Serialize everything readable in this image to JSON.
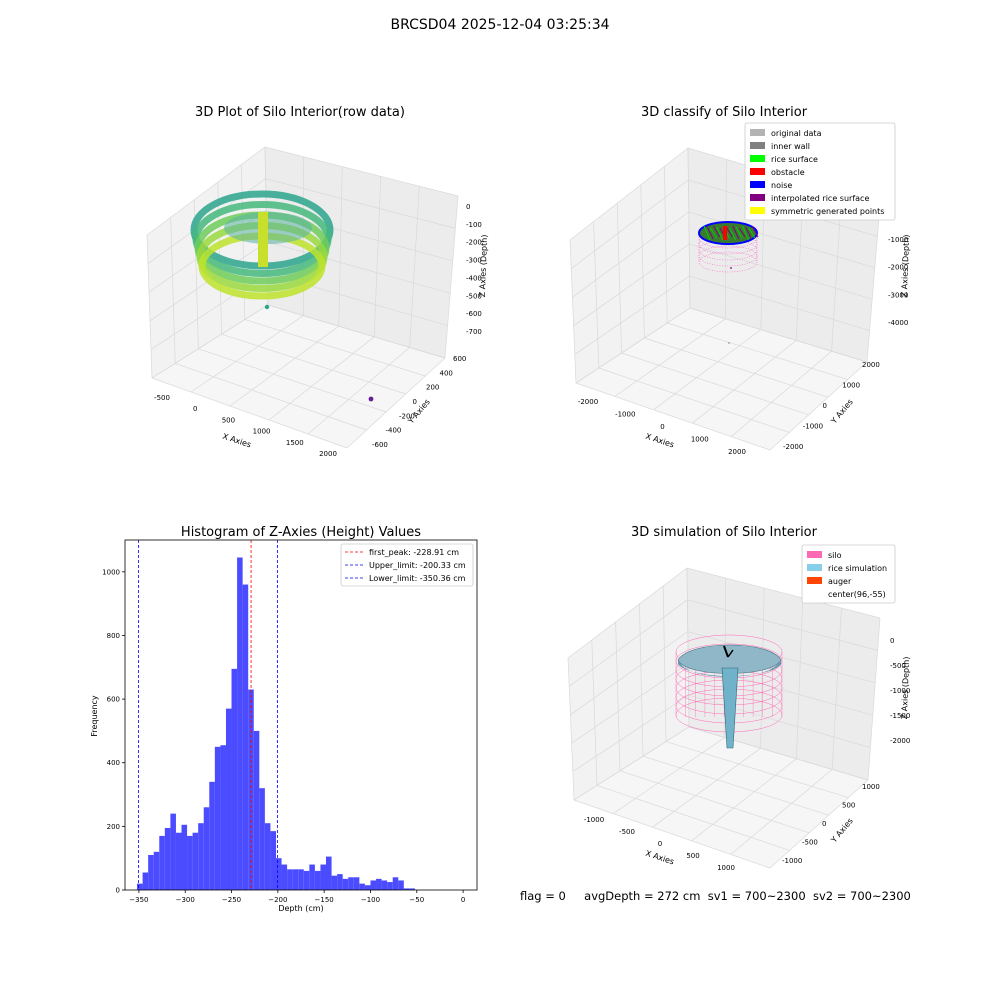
{
  "figure": {
    "suptitle": "BRCSD04 2025-12-04 03:25:34",
    "status_line": {
      "flag": "flag = 0",
      "avg_depth": "avgDepth = 272 cm",
      "sv1": "sv1 = 700~2300",
      "sv2": "sv2 = 700~2300"
    }
  },
  "panels": {
    "raw": {
      "title": "3D Plot of Silo Interior(row data)",
      "xlabel": "X Axies",
      "ylabel": "Y Axies",
      "zlabel": "Z Axies (Depth)",
      "x_ticks": [
        "-500",
        "0",
        "500",
        "1000",
        "1500",
        "2000"
      ],
      "y_ticks": [
        "-600",
        "-400",
        "-200",
        "0",
        "200",
        "400",
        "600"
      ],
      "z_ticks": [
        "0",
        "-100",
        "-200",
        "-300",
        "-400",
        "-500",
        "-600",
        "-700"
      ]
    },
    "classify": {
      "title": "3D classify of Silo Interior",
      "xlabel": "X Axies",
      "ylabel": "Y Axies",
      "zlabel": "Z Axies (Depth)",
      "x_ticks": [
        "-2000",
        "-1000",
        "0",
        "1000",
        "2000"
      ],
      "y_ticks": [
        "-2000",
        "-1000",
        "0",
        "1000",
        "2000"
      ],
      "z_ticks": [
        "0",
        "-1000",
        "-2000",
        "-3000",
        "-4000"
      ],
      "legend": [
        {
          "label": "original data",
          "color": "#b3b3b3"
        },
        {
          "label": "inner wall",
          "color": "#808080"
        },
        {
          "label": "rice surface",
          "color": "#00ff00"
        },
        {
          "label": "obstacle",
          "color": "#ff0000"
        },
        {
          "label": "noise",
          "color": "#0000ff"
        },
        {
          "label": "interpolated rice surface",
          "color": "#800080"
        },
        {
          "label": "symmetric generated points",
          "color": "#ffff00"
        }
      ]
    },
    "simulation": {
      "title": "3D simulation of Silo Interior",
      "xlabel": "X Axies",
      "ylabel": "Y Axies",
      "zlabel": "Z Axies (Depth)",
      "x_ticks": [
        "-1000",
        "-500",
        "0",
        "500",
        "1000"
      ],
      "y_ticks": [
        "-1000",
        "-500",
        "0",
        "500",
        "1000"
      ],
      "z_ticks": [
        "0",
        "-500",
        "-1000",
        "-1500",
        "-2000"
      ],
      "legend": [
        {
          "label": "silo",
          "color": "#ff69b4"
        },
        {
          "label": "rice simulation",
          "color": "#87ceeb"
        },
        {
          "label": "auger",
          "color": "#ff4500"
        },
        {
          "label": "center(96,-55)",
          "color": "#ffffff"
        }
      ]
    }
  },
  "chart_data": [
    {
      "type": "scatter",
      "title": "3D Plot of Silo Interior(row data)",
      "xlabel": "X Axies",
      "ylabel": "Y Axies",
      "zlabel": "Z Axies (Depth)",
      "xlim": [
        -700,
        2000
      ],
      "ylim": [
        -700,
        700
      ],
      "zlim": [
        -720,
        20
      ],
      "grid": true
    },
    {
      "type": "scatter",
      "title": "3D classify of Silo Interior",
      "xlabel": "X Axies",
      "ylabel": "Y Axies",
      "zlabel": "Z Axies (Depth)",
      "xlim": [
        -2400,
        2400
      ],
      "ylim": [
        -2400,
        2400
      ],
      "zlim": [
        -4600,
        200
      ],
      "legend_position": "top-right",
      "series": [
        {
          "name": "original data",
          "color": "#b3b3b3"
        },
        {
          "name": "inner wall",
          "color": "#808080"
        },
        {
          "name": "rice surface",
          "color": "#00ff00"
        },
        {
          "name": "obstacle",
          "color": "#ff0000"
        },
        {
          "name": "noise",
          "color": "#0000ff"
        },
        {
          "name": "interpolated rice surface",
          "color": "#800080"
        },
        {
          "name": "symmetric generated points",
          "color": "#ffff00"
        }
      ]
    },
    {
      "type": "bar",
      "title": "Histogram of Z-Axies (Height) Values",
      "xlabel": "Depth (cm)",
      "ylabel": "Frequency",
      "xlim": [
        -365,
        15
      ],
      "ylim": [
        0,
        1100
      ],
      "x_ticks": [
        -350,
        -300,
        -250,
        -200,
        -150,
        -100,
        -50,
        0
      ],
      "y_ticks": [
        0,
        200,
        400,
        600,
        800,
        1000
      ],
      "bin_start": -352,
      "bin_width": 6,
      "values": [
        20,
        55,
        110,
        120,
        170,
        195,
        240,
        180,
        205,
        170,
        180,
        210,
        260,
        340,
        450,
        455,
        570,
        695,
        1045,
        960,
        630,
        500,
        320,
        210,
        185,
        100,
        80,
        65,
        65,
        65,
        60,
        80,
        60,
        80,
        105,
        45,
        50,
        35,
        40,
        40,
        20,
        15,
        30,
        35,
        30,
        25,
        40,
        30,
        5,
        5
      ],
      "bar_color": "#4b4bff",
      "lines": [
        {
          "label": "first_peak: -228.91 cm",
          "x": -228.91,
          "color": "#ff0000"
        },
        {
          "label": "Upper_limit: -200.33 cm",
          "x": -200.33,
          "color": "#0000ff"
        },
        {
          "label": "Lower_limit: -350.36 cm",
          "x": -350.36,
          "color": "#0000ff"
        }
      ],
      "legend_position": "top-right"
    },
    {
      "type": "surface",
      "title": "3D simulation of Silo Interior",
      "xlabel": "X Axies",
      "ylabel": "Y Axies",
      "zlabel": "Z Axies (Depth)",
      "xlim": [
        -1200,
        1200
      ],
      "ylim": [
        -1200,
        1200
      ],
      "zlim": [
        -2300,
        200
      ],
      "legend_position": "top-right",
      "series": [
        {
          "name": "silo",
          "color": "#ff69b4"
        },
        {
          "name": "rice simulation",
          "color": "#87ceeb"
        },
        {
          "name": "auger",
          "color": "#ff4500"
        },
        {
          "name": "center(96,-55)",
          "color": "#ffffff"
        }
      ]
    }
  ]
}
